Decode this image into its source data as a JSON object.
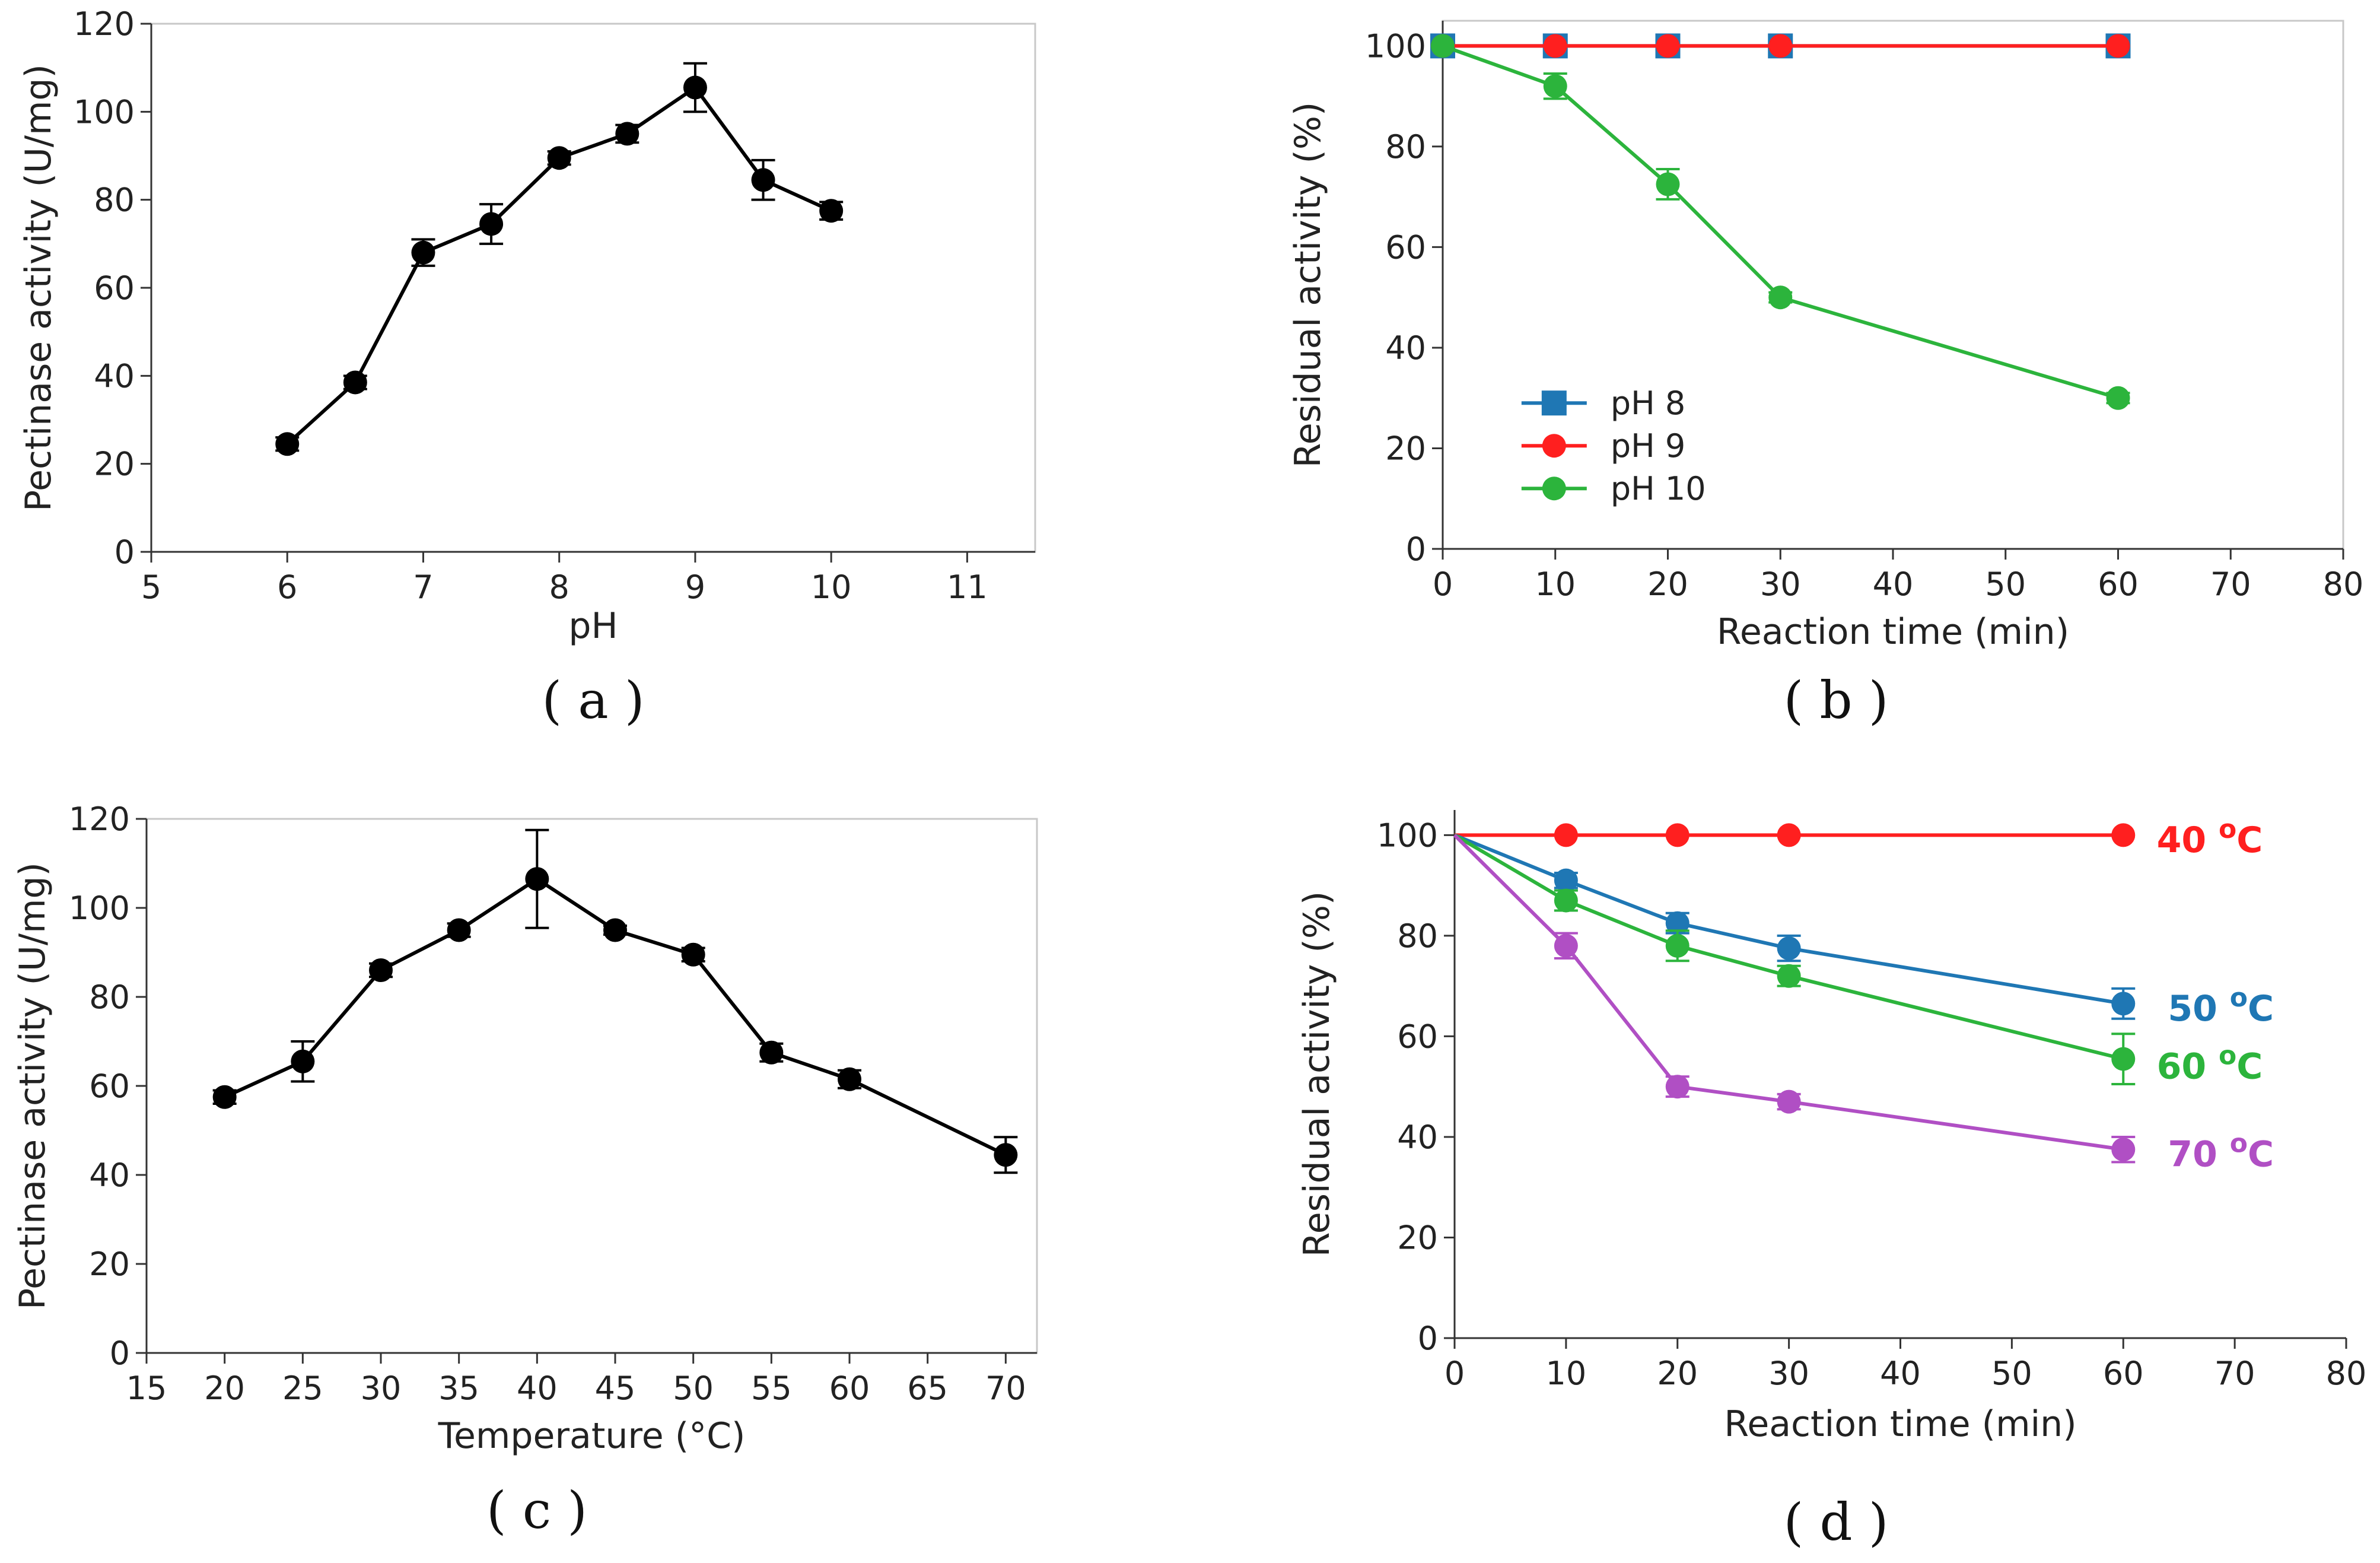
{
  "figure": {
    "panel_labels": [
      "( a )",
      "( b )",
      "( c )",
      "( d )"
    ]
  },
  "chart_data": [
    {
      "id": "a",
      "type": "line",
      "title": "",
      "xlabel": "pH",
      "ylabel": "Pectinase activity (U/mg)",
      "xlim": [
        5,
        11.5
      ],
      "ylim": [
        0,
        120
      ],
      "xticks": [
        5,
        6,
        7,
        8,
        9,
        10,
        11
      ],
      "yticks": [
        0,
        20,
        40,
        60,
        80,
        100,
        120
      ],
      "framed": true,
      "series": [
        {
          "name": "Pectinase activity",
          "color": "#000000",
          "marker": "circle",
          "x": [
            6,
            6.5,
            7,
            7.5,
            8,
            8.5,
            9,
            9.5,
            10
          ],
          "y": [
            24.5,
            38.5,
            68,
            74.5,
            89.5,
            95,
            105.5,
            84.5,
            77.5
          ],
          "err": [
            1.5,
            1.5,
            3,
            4.5,
            1.5,
            2,
            5.5,
            4.5,
            2
          ]
        }
      ]
    },
    {
      "id": "b",
      "type": "line",
      "title": "",
      "xlabel": "Reaction time (min)",
      "ylabel": "Residual activity (%)",
      "xlim": [
        0,
        80
      ],
      "ylim": [
        0,
        105
      ],
      "xticks": [
        0,
        10,
        20,
        30,
        40,
        50,
        60,
        70,
        80
      ],
      "yticks": [
        0,
        20,
        40,
        60,
        80,
        100
      ],
      "framed": true,
      "legend": "lower-left",
      "series": [
        {
          "name": "pH 8",
          "color": "#1f77b4",
          "marker": "square",
          "x": [
            0,
            10,
            20,
            30,
            60
          ],
          "y": [
            100,
            100,
            100,
            100,
            100
          ],
          "err": [
            0,
            0,
            0,
            0,
            0
          ]
        },
        {
          "name": "pH 9",
          "color": "#ff1f1f",
          "marker": "circle",
          "x": [
            0,
            10,
            20,
            30,
            60
          ],
          "y": [
            100,
            100,
            100,
            100,
            100
          ],
          "err": [
            0,
            0,
            0,
            0,
            0
          ]
        },
        {
          "name": "pH 10",
          "color": "#2cb43c",
          "marker": "circle",
          "x": [
            0,
            10,
            20,
            30,
            60
          ],
          "y": [
            100,
            92,
            72.5,
            50,
            30
          ],
          "err": [
            0,
            2.5,
            3,
            1,
            1
          ]
        }
      ]
    },
    {
      "id": "c",
      "type": "line",
      "title": "",
      "xlabel": "Temperature (°C)",
      "ylabel": "Pectinase activity (U/mg)",
      "xlim": [
        15,
        72
      ],
      "ylim": [
        0,
        120
      ],
      "xticks": [
        15,
        20,
        25,
        30,
        35,
        40,
        45,
        50,
        55,
        60,
        65,
        70
      ],
      "yticks": [
        0,
        20,
        40,
        60,
        80,
        100,
        120
      ],
      "framed": true,
      "series": [
        {
          "name": "Pectinase activity",
          "color": "#000000",
          "marker": "circle",
          "x": [
            20,
            25,
            30,
            35,
            40,
            45,
            50,
            55,
            60,
            70
          ],
          "y": [
            57.5,
            65.5,
            86,
            95,
            106.5,
            95,
            89.5,
            67.5,
            61.5,
            44.5
          ],
          "err": [
            1.5,
            4.5,
            1.5,
            1.5,
            11,
            1,
            1.5,
            2,
            2,
            4
          ]
        }
      ]
    },
    {
      "id": "d",
      "type": "line",
      "title": "",
      "xlabel": "Reaction time (min)",
      "ylabel": "Residual activity (%)",
      "xlim": [
        0,
        80
      ],
      "ylim": [
        0,
        105
      ],
      "xticks": [
        0,
        10,
        20,
        30,
        40,
        50,
        60,
        70,
        80
      ],
      "yticks": [
        0,
        20,
        40,
        60,
        80,
        100
      ],
      "framed": false,
      "series": [
        {
          "name": "40 °C",
          "color": "#ff1f1f",
          "marker": "circle",
          "x": [
            0,
            10,
            20,
            30,
            60
          ],
          "y": [
            100,
            100,
            100,
            100,
            100
          ],
          "err": [
            0,
            0,
            0,
            0,
            0
          ]
        },
        {
          "name": "50 °C",
          "color": "#1f77b4",
          "marker": "circle",
          "x": [
            0,
            10,
            20,
            30,
            60
          ],
          "y": [
            100,
            91,
            82.5,
            77.5,
            66.5
          ],
          "err": [
            0,
            1.5,
            2,
            2.5,
            3
          ]
        },
        {
          "name": "60 °C",
          "color": "#2cb43c",
          "marker": "circle",
          "x": [
            0,
            10,
            20,
            30,
            60
          ],
          "y": [
            100,
            87,
            78,
            72,
            55.5
          ],
          "err": [
            0,
            2,
            3,
            2,
            5
          ]
        },
        {
          "name": "70 °C",
          "color": "#b04fc4",
          "marker": "circle",
          "x": [
            0,
            10,
            20,
            30,
            60
          ],
          "y": [
            100,
            78,
            50,
            47,
            37.5
          ],
          "err": [
            0,
            2.5,
            2,
            1.5,
            2.5
          ]
        }
      ],
      "annotations": [
        {
          "text": "40 °C",
          "color": "#ff1f1f",
          "anchor_x": 63,
          "anchor_y": 99
        },
        {
          "text": "50 °C",
          "color": "#1f77b4",
          "anchor_x": 64,
          "anchor_y": 65.5
        },
        {
          "text": "60 °C",
          "color": "#2cb43c",
          "anchor_x": 63,
          "anchor_y": 54
        },
        {
          "text": "70 °C",
          "color": "#b04fc4",
          "anchor_x": 64,
          "anchor_y": 36.5
        }
      ]
    }
  ]
}
